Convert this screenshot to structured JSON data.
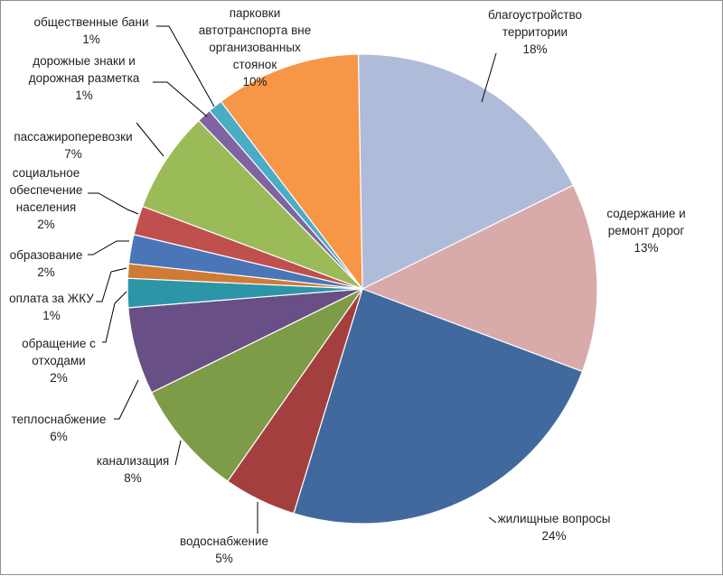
{
  "chart_data": {
    "type": "pie",
    "title": "",
    "slices": [
      {
        "name": "благоустройство территории",
        "lines": [
          "благоустройство",
          "территории"
        ],
        "value": 18,
        "percent_label": "18%",
        "color": "#aebcd9"
      },
      {
        "name": "содержание и ремонт дорог",
        "lines": [
          "содержание и",
          "ремонт дорог"
        ],
        "value": 13,
        "percent_label": "13%",
        "color": "#d9aaaa"
      },
      {
        "name": "жилищные вопросы",
        "lines": [
          "жилищные вопросы"
        ],
        "value": 24,
        "percent_label": "24%",
        "color": "#41699e"
      },
      {
        "name": "водоснабжение",
        "lines": [
          "водоснабжение"
        ],
        "value": 5,
        "percent_label": "5%",
        "color": "#a3403f"
      },
      {
        "name": "канализация",
        "lines": [
          "канализация"
        ],
        "value": 8,
        "percent_label": "8%",
        "color": "#7e9b48"
      },
      {
        "name": "теплоснабжение",
        "lines": [
          "теплоснабжение"
        ],
        "value": 6,
        "percent_label": "6%",
        "color": "#684f85"
      },
      {
        "name": "обращение с отходами",
        "lines": [
          "обращение с",
          "отходами"
        ],
        "value": 2,
        "percent_label": "2%",
        "color": "#2d95a8"
      },
      {
        "name": "оплата за ЖКУ",
        "lines": [
          "оплата за ЖКУ"
        ],
        "value": 1,
        "percent_label": "1%",
        "color": "#cf7b35"
      },
      {
        "name": "образование",
        "lines": [
          "образование"
        ],
        "value": 2,
        "percent_label": "2%",
        "color": "#4a76b8"
      },
      {
        "name": "социальное обеспечение населения",
        "lines": [
          "социальное",
          "обеспечение",
          "населения"
        ],
        "value": 2,
        "percent_label": "2%",
        "color": "#c0504d"
      },
      {
        "name": "пассажироперевозки",
        "lines": [
          "пассажироперевозки"
        ],
        "value": 7,
        "percent_label": "7%",
        "color": "#9bbb59"
      },
      {
        "name": "дорожные знаки и дорожная разметка",
        "lines": [
          "дорожные знаки и",
          "дорожная разметка"
        ],
        "value": 1,
        "percent_label": "1%",
        "color": "#8064a2"
      },
      {
        "name": "общественные бани",
        "lines": [
          "общественные бани"
        ],
        "value": 1,
        "percent_label": "1%",
        "color": "#4bacc6"
      },
      {
        "name": "парковки автотранспорта вне организованных стоянок",
        "lines": [
          "парковки",
          "автотранспорта вне",
          "организованных",
          "стоянок"
        ],
        "value": 10,
        "percent_label": "10%",
        "color": "#f79646"
      }
    ]
  }
}
